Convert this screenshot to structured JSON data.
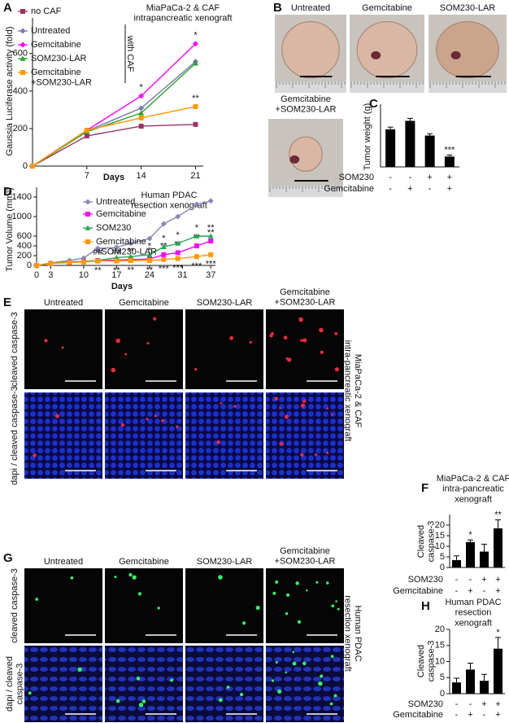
{
  "panel_labels": [
    "A",
    "B",
    "C",
    "D",
    "E",
    "F",
    "G",
    "H"
  ],
  "photos_b": {
    "labels": [
      "Untreated",
      "Gemcitabine",
      "SOM230-LAR",
      "Gemcitabine\n+SOM230-LAR"
    ]
  },
  "micro_e": {
    "columns": [
      "Untreated",
      "Gemcitabine",
      "SOM230-LAR",
      "Gemcitabine\n+SOM230-LAR"
    ],
    "rows": [
      "cleaved caspase-3",
      "dapi / cleaved caspase-3"
    ],
    "side": "MiaPaCa-2 & CAF\nintra-pancreatic xenograft"
  },
  "micro_g": {
    "columns": [
      "Untreated",
      "Gemcitabine",
      "SOM230-LAR",
      "Gemcitabine\n+SOM230-LAR"
    ],
    "rows": [
      "cleaved caspase-3",
      "dapi / cleaved\ncaspase-3"
    ],
    "side": "Human PDAC\nresection xenograft"
  },
  "chart_data": [
    {
      "type": "line",
      "title": "MiaPaCa-2 & CAF\nintrapancreatic xenograft",
      "xlabel": "Days",
      "ylabel": "Gaussia Luciferase activity (fold)",
      "x": [
        0,
        7,
        14,
        21
      ],
      "xlim": [
        0,
        22
      ],
      "xticks": [
        7,
        14,
        21
      ],
      "ylim": [
        0,
        790
      ],
      "yticks": [
        0,
        200,
        400,
        600
      ],
      "legend_note": "with CAF",
      "series": [
        {
          "name": "no CAF",
          "color": "#993366",
          "marker": "square",
          "values": [
            0,
            161,
            213,
            222
          ]
        },
        {
          "name": "Untreated",
          "color": "#7878b0",
          "marker": "diamond",
          "values": [
            0,
            187,
            309,
            557
          ]
        },
        {
          "name": "Gemcitabine",
          "color": "#ff00ff",
          "marker": "diamond",
          "values": [
            0,
            191,
            374,
            652
          ],
          "stars": [
            null,
            null,
            "*",
            "*"
          ]
        },
        {
          "name": "SOM230-LAR",
          "color": "#2ca02c",
          "marker": "triangle",
          "values": [
            0,
            183,
            283,
            548
          ]
        },
        {
          "name": "Gemcitabine\n+SOM230-LAR",
          "color": "#ff9900",
          "marker": "square",
          "values": [
            0,
            191,
            257,
            317
          ],
          "stars": [
            null,
            null,
            null,
            "**"
          ]
        }
      ]
    },
    {
      "type": "bar",
      "ylabel": "Tumor weight (g)",
      "ylim": [
        0,
        2
      ],
      "values": [
        1.2,
        1.47,
        1.0,
        0.33
      ],
      "errors": [
        0.07,
        0.08,
        0.06,
        0.05
      ],
      "color": "#000000",
      "stars": [
        null,
        null,
        null,
        "***"
      ],
      "treatments": [
        {
          "label": "SOM230",
          "signs": [
            "-",
            "-",
            "+",
            "+"
          ]
        },
        {
          "label": "Gemcitabine",
          "signs": [
            "-",
            "+",
            "-",
            "+"
          ]
        }
      ]
    },
    {
      "type": "line",
      "title": "Human PDAC\nresection xenograft",
      "xlabel": "Days",
      "ylabel": "Tumor Volume (mm³)",
      "x": [
        0,
        3,
        7,
        10,
        13,
        17,
        20,
        24,
        27,
        30,
        34,
        37
      ],
      "xlim": [
        0,
        38
      ],
      "xticks": [
        0,
        3,
        10,
        17,
        24,
        31,
        37
      ],
      "ylim": [
        0,
        1600
      ],
      "yticks": [
        0,
        200,
        400,
        600,
        1000,
        1400
      ],
      "series": [
        {
          "name": "Untreated",
          "color": "#8888bb",
          "marker": "diamond",
          "values": [
            0,
            50,
            100,
            150,
            350,
            370,
            450,
            550,
            850,
            1000,
            1250,
            1320
          ]
        },
        {
          "name": "Gemcitabine",
          "color": "#ff00ff",
          "marker": "square",
          "values": [
            0,
            40,
            70,
            80,
            100,
            110,
            120,
            130,
            220,
            260,
            400,
            500
          ],
          "stars": [
            null,
            null,
            null,
            null,
            "##",
            "##",
            "**",
            "*",
            "**",
            "**",
            "**",
            "**"
          ]
        },
        {
          "name": "SOM230",
          "color": "#22aa55",
          "marker": "triangle",
          "values": [
            0,
            40,
            70,
            80,
            100,
            160,
            180,
            220,
            380,
            450,
            600,
            600
          ],
          "stars": [
            null,
            null,
            null,
            null,
            null,
            null,
            null,
            "*",
            "*",
            "*",
            "*",
            "**"
          ]
        },
        {
          "name": "Gemcitabine\n+SOM230-LAR",
          "color": "#ff9900",
          "marker": "square",
          "values": [
            0,
            40,
            60,
            70,
            90,
            90,
            100,
            100,
            120,
            140,
            180,
            220
          ],
          "stars": [
            null,
            null,
            null,
            null,
            "**",
            "**",
            "**",
            "**",
            "***",
            "***",
            "***",
            "***"
          ],
          "star_side": "below"
        }
      ]
    },
    {
      "type": "bar",
      "title": "MiaPaCa-2 & CAF\nintra-pancreatic\nxenograft",
      "ylabel": "Cleaved\ncaspase-3",
      "ylim": [
        0,
        25
      ],
      "yticks": [
        0,
        5,
        10,
        15,
        20
      ],
      "values": [
        3.5,
        12,
        7.5,
        18.5
      ],
      "errors": [
        2,
        1,
        3.5,
        4
      ],
      "color": "#000000",
      "stars": [
        null,
        "*",
        null,
        "**"
      ],
      "treatments": [
        {
          "label": "SOM230",
          "signs": [
            "-",
            "-",
            "+",
            "+"
          ]
        },
        {
          "label": "Gemcitabine",
          "signs": [
            "-",
            "+",
            "-",
            "+"
          ]
        }
      ]
    },
    {
      "type": "bar",
      "title": "Human PDAC\nresection\nxenograft",
      "ylabel": "Cleaved\ncaspase-3",
      "ylim": [
        0,
        20
      ],
      "yticks": [
        0,
        5,
        10,
        15,
        20
      ],
      "values": [
        3.5,
        7.5,
        4,
        14
      ],
      "errors": [
        1.3,
        2,
        2,
        3.5
      ],
      "color": "#000000",
      "stars": [
        null,
        null,
        null,
        "*"
      ],
      "treatments": [
        {
          "label": "SOM230",
          "signs": [
            "-",
            "-",
            "+",
            "+"
          ]
        },
        {
          "label": "Gemcitabine",
          "signs": [
            "-",
            "+",
            "-",
            "+"
          ]
        }
      ]
    }
  ]
}
